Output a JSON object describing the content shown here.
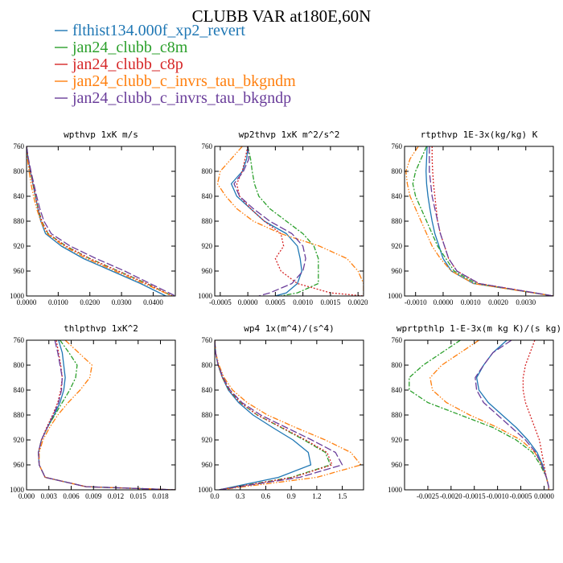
{
  "figure_title": "CLUBB VAR at180E,60N",
  "legend": [
    {
      "name": "flthist134.000f_xp2_revert",
      "color": "#1f77b4"
    },
    {
      "name": "jan24_clubb_c8m",
      "color": "#2ca02c"
    },
    {
      "name": "jan24_clubb_c8p",
      "color": "#d62728"
    },
    {
      "name": "jan24_clubb_c_invrs_tau_bkgndm",
      "color": "#ff7f0e"
    },
    {
      "name": "jan24_clubb_c_invrs_tau_bkgndp",
      "color": "#6a3d9a"
    }
  ],
  "chart_data": [
    {
      "type": "line",
      "title": "wpthvp  1xK m/s",
      "xlim": [
        0,
        0.047
      ],
      "ylim": [
        760,
        1000
      ],
      "y_inverted": true,
      "xticks": [
        0,
        0.01,
        0.02,
        0.03,
        0.04
      ],
      "xtick_labels": [
        "0.0000",
        "0.0100",
        "0.0200",
        "0.0300",
        "0.0400"
      ],
      "yticks": [
        760,
        800,
        840,
        880,
        920,
        960,
        1000
      ],
      "y": [
        760,
        780,
        800,
        820,
        840,
        860,
        880,
        900,
        920,
        940,
        960,
        980,
        1000
      ],
      "series": [
        {
          "name": "flthist134.000f_xp2_revert",
          "x": [
            0,
            0.0005,
            0.0012,
            0.002,
            0.0028,
            0.0036,
            0.0045,
            0.006,
            0.011,
            0.018,
            0.027,
            0.036,
            0.044
          ]
        },
        {
          "name": "jan24_clubb_c8m",
          "x": [
            0,
            0.0005,
            0.0012,
            0.002,
            0.0028,
            0.0037,
            0.0048,
            0.0068,
            0.0125,
            0.02,
            0.029,
            0.038,
            0.046
          ]
        },
        {
          "name": "jan24_clubb_c8p",
          "x": [
            0,
            0.0005,
            0.0012,
            0.002,
            0.0028,
            0.0037,
            0.0048,
            0.0068,
            0.0125,
            0.02,
            0.029,
            0.038,
            0.046
          ]
        },
        {
          "name": "jan24_clubb_c_invrs_tau_bkgndm",
          "x": [
            0,
            0.0003,
            0.0008,
            0.0014,
            0.0022,
            0.0032,
            0.0045,
            0.0065,
            0.0118,
            0.019,
            0.028,
            0.037,
            0.046
          ]
        },
        {
          "name": "jan24_clubb_c_invrs_tau_bkgndp",
          "x": [
            0,
            0.0006,
            0.0014,
            0.0023,
            0.0032,
            0.0042,
            0.0055,
            0.0078,
            0.0138,
            0.022,
            0.031,
            0.039,
            0.047
          ]
        }
      ]
    },
    {
      "type": "line",
      "title": "wp2thvp  1xK m^2/s^2",
      "xlim": [
        -0.0006,
        0.0021
      ],
      "ylim": [
        760,
        1000
      ],
      "y_inverted": true,
      "xticks": [
        -0.0005,
        0,
        0.0005,
        0.001,
        0.0015,
        0.002
      ],
      "xtick_labels": [
        "-0.0005",
        "0.0000",
        "0.0005",
        "0.0010",
        "0.0015",
        "0.0020"
      ],
      "yticks": [
        760,
        800,
        840,
        880,
        920,
        960,
        1000
      ],
      "y": [
        760,
        780,
        800,
        820,
        840,
        860,
        880,
        900,
        920,
        940,
        960,
        980,
        995,
        1000
      ],
      "series": [
        {
          "name": "flthist134.000f_xp2_revert",
          "x": [
            0,
            -2e-05,
            -0.0001,
            -0.0003,
            -0.0002,
            5e-05,
            0.0003,
            0.0007,
            0.0009,
            0.00095,
            0.00098,
            0.0009,
            0.0007,
            0.0005
          ]
        },
        {
          "name": "jan24_clubb_c8m",
          "x": [
            0,
            5e-05,
            8e-05,
            0.00012,
            0.0002,
            0.0004,
            0.0007,
            0.001,
            0.0012,
            0.00128,
            0.00128,
            0.00128,
            0.0009,
            0.0006
          ]
        },
        {
          "name": "jan24_clubb_c8p",
          "x": [
            0,
            -5e-05,
            -0.0001,
            -0.0002,
            -0.00015,
            5e-05,
            0.0003,
            0.0006,
            0.00065,
            0.0005,
            0.0006,
            0.0009,
            0.0015,
            0.0021
          ]
        },
        {
          "name": "jan24_clubb_c_invrs_tau_bkgndm",
          "x": [
            -0.0001,
            -0.0003,
            -0.0005,
            -0.00055,
            -0.0004,
            -0.0002,
            0.0001,
            0.0006,
            0.0013,
            0.0018,
            0.002,
            0.0021,
            0.0021,
            0.0021
          ]
        },
        {
          "name": "jan24_clubb_c_invrs_tau_bkgndp",
          "x": [
            0,
            2e-05,
            -8e-05,
            -0.00025,
            -0.00015,
            0.0001,
            0.0004,
            0.0008,
            0.001,
            0.00105,
            0.001,
            0.0008,
            0.0004,
            0.0002
          ]
        }
      ]
    },
    {
      "type": "line",
      "title": "rtpthvp  1E-3x(kg/kg) K",
      "xlim": [
        -0.0014,
        0.004
      ],
      "ylim": [
        760,
        1000
      ],
      "y_inverted": true,
      "xticks": [
        -0.001,
        0,
        0.001,
        0.002,
        0.003
      ],
      "xtick_labels": [
        "-0.0010",
        "0.0000",
        "0.0010",
        "0.0020",
        "0.0030"
      ],
      "yticks": [
        760,
        800,
        840,
        880,
        920,
        960,
        1000
      ],
      "y": [
        760,
        780,
        800,
        820,
        840,
        860,
        880,
        900,
        920,
        940,
        960,
        980,
        1000
      ],
      "series": [
        {
          "name": "flthist134.000f_xp2_revert",
          "x": [
            -0.00058,
            -0.0006,
            -0.00062,
            -0.0006,
            -0.00055,
            -0.00048,
            -0.0004,
            -0.0003,
            -0.00015,
            0.0,
            0.0003,
            0.0011,
            0.004
          ]
        },
        {
          "name": "jan24_clubb_c8m",
          "x": [
            -0.0006,
            -0.0008,
            -0.001,
            -0.0011,
            -0.001,
            -0.0008,
            -0.0006,
            -0.0004,
            -0.0002,
            0.0001,
            0.0004,
            0.0012,
            0.004
          ]
        },
        {
          "name": "jan24_clubb_c8p",
          "x": [
            -0.0004,
            -0.0004,
            -0.00038,
            -0.00035,
            -0.0003,
            -0.00025,
            -0.0002,
            -0.0001,
            5e-05,
            0.0002,
            0.0005,
            0.0013,
            0.004
          ]
        },
        {
          "name": "jan24_clubb_c_invrs_tau_bkgndm",
          "x": [
            -0.0009,
            -0.0012,
            -0.00135,
            -0.0013,
            -0.0012,
            -0.001,
            -0.0008,
            -0.0006,
            -0.0004,
            -0.0001,
            0.0003,
            0.0011,
            0.004
          ]
        },
        {
          "name": "jan24_clubb_c_invrs_tau_bkgndp",
          "x": [
            -0.0005,
            -0.0005,
            -0.0005,
            -0.00045,
            -0.0004,
            -0.0003,
            -0.0002,
            -0.0001,
            5e-05,
            0.0002,
            0.0005,
            0.0013,
            0.004
          ]
        }
      ]
    },
    {
      "type": "line",
      "title": "thlpthvp  1xK^2",
      "xlim": [
        0,
        0.02
      ],
      "ylim": [
        760,
        1000
      ],
      "y_inverted": true,
      "xticks": [
        0,
        0.003,
        0.006,
        0.009,
        0.012,
        0.015,
        0.018
      ],
      "xtick_labels": [
        "0.000",
        "0.003",
        "0.006",
        "0.009",
        "0.012",
        "0.015",
        "0.018"
      ],
      "yticks": [
        760,
        800,
        840,
        880,
        920,
        960,
        1000
      ],
      "y": [
        760,
        780,
        800,
        820,
        840,
        860,
        880,
        900,
        920,
        940,
        960,
        980,
        995,
        1000
      ],
      "series": [
        {
          "name": "flthist134.000f_xp2_revert",
          "x": [
            0.0043,
            0.0048,
            0.005,
            0.0052,
            0.005,
            0.0045,
            0.0037,
            0.0028,
            0.002,
            0.0016,
            0.0017,
            0.0025,
            0.008,
            0.02
          ]
        },
        {
          "name": "jan24_clubb_c8m",
          "x": [
            0.0045,
            0.0057,
            0.0068,
            0.0066,
            0.0058,
            0.0048,
            0.0038,
            0.0028,
            0.002,
            0.0016,
            0.0017,
            0.0025,
            0.008,
            0.02
          ]
        },
        {
          "name": "jan24_clubb_c8p",
          "x": [
            0.004,
            0.0043,
            0.0046,
            0.0048,
            0.0046,
            0.0042,
            0.0035,
            0.0027,
            0.002,
            0.0016,
            0.0017,
            0.0025,
            0.008,
            0.02
          ]
        },
        {
          "name": "jan24_clubb_c_invrs_tau_bkgndm",
          "x": [
            0.0052,
            0.007,
            0.0088,
            0.0085,
            0.0072,
            0.0056,
            0.0042,
            0.0031,
            0.0022,
            0.0017,
            0.0017,
            0.0025,
            0.008,
            0.02
          ]
        },
        {
          "name": "jan24_clubb_c_invrs_tau_bkgndp",
          "x": [
            0.0038,
            0.0042,
            0.0045,
            0.0048,
            0.0047,
            0.0043,
            0.0036,
            0.0028,
            0.002,
            0.0016,
            0.0017,
            0.0025,
            0.008,
            0.02
          ]
        }
      ]
    },
    {
      "type": "line",
      "title": "wp4  1x(m^4)/(s^4)",
      "xlim": [
        0,
        1.75
      ],
      "ylim": [
        760,
        1000
      ],
      "y_inverted": true,
      "xticks": [
        0,
        0.3,
        0.6,
        0.9,
        1.2,
        1.5
      ],
      "xtick_labels": [
        "0.0",
        "0.3",
        "0.6",
        "0.9",
        "1.2",
        "1.5"
      ],
      "yticks": [
        760,
        800,
        840,
        880,
        920,
        960,
        1000
      ],
      "y": [
        760,
        780,
        800,
        820,
        840,
        860,
        880,
        900,
        920,
        940,
        960,
        980,
        1000
      ],
      "series": [
        {
          "name": "flthist134.000f_xp2_revert",
          "x": [
            0,
            0.01,
            0.04,
            0.09,
            0.16,
            0.28,
            0.45,
            0.68,
            0.92,
            1.1,
            1.13,
            0.75,
            0.05
          ]
        },
        {
          "name": "jan24_clubb_c8m",
          "x": [
            0,
            0.01,
            0.04,
            0.09,
            0.17,
            0.3,
            0.5,
            0.78,
            1.05,
            1.3,
            1.36,
            0.9,
            0.05
          ]
        },
        {
          "name": "jan24_clubb_c8p",
          "x": [
            0,
            0.01,
            0.04,
            0.09,
            0.17,
            0.3,
            0.5,
            0.79,
            1.07,
            1.32,
            1.38,
            0.92,
            0.05
          ]
        },
        {
          "name": "jan24_clubb_c_invrs_tau_bkgndm",
          "x": [
            0,
            0.01,
            0.05,
            0.11,
            0.21,
            0.38,
            0.62,
            0.95,
            1.3,
            1.6,
            1.72,
            1.2,
            0.06
          ]
        },
        {
          "name": "jan24_clubb_c_invrs_tau_bkgndp",
          "x": [
            0,
            0.01,
            0.04,
            0.1,
            0.18,
            0.32,
            0.54,
            0.84,
            1.14,
            1.42,
            1.5,
            1.0,
            0.05
          ]
        }
      ]
    },
    {
      "type": "line",
      "title": "wprtpthlp  1-E-3x(m kg K)/(s kg)",
      "xlim": [
        -0.003,
        0.0002
      ],
      "ylim": [
        760,
        1000
      ],
      "y_inverted": true,
      "xticks": [
        -0.0025,
        -0.002,
        -0.0015,
        -0.001,
        -0.0005,
        0
      ],
      "xtick_labels": [
        "-0.0025",
        "-0.0020",
        "-0.0015",
        "-0.0010",
        "-0.0005",
        "0.0000"
      ],
      "yticks": [
        760,
        800,
        840,
        880,
        920,
        960,
        1000
      ],
      "y": [
        760,
        780,
        800,
        820,
        840,
        860,
        880,
        900,
        920,
        940,
        960,
        980,
        995,
        1000
      ],
      "series": [
        {
          "name": "flthist134.000f_xp2_revert",
          "x": [
            -0.0008,
            -0.0011,
            -0.0013,
            -0.00145,
            -0.0014,
            -0.0012,
            -0.0009,
            -0.0006,
            -0.00035,
            -0.00015,
            -3e-05,
            5e-05,
            0.0001,
            0.0001
          ]
        },
        {
          "name": "jan24_clubb_c8m",
          "x": [
            -0.0018,
            -0.0022,
            -0.0026,
            -0.0029,
            -0.0029,
            -0.0025,
            -0.0018,
            -0.0011,
            -0.0006,
            -0.00025,
            -8e-05,
            5e-05,
            0.0001,
            0.0001
          ]
        },
        {
          "name": "jan24_clubb_c8p",
          "x": [
            -0.0002,
            -0.0003,
            -0.0004,
            -0.00045,
            -0.00045,
            -0.0004,
            -0.0003,
            -0.0002,
            -0.0001,
            -5e-05,
            0,
            5e-05,
            0.0001,
            0.0001
          ]
        },
        {
          "name": "jan24_clubb_c_invrs_tau_bkgndm",
          "x": [
            -0.0014,
            -0.0018,
            -0.0022,
            -0.00245,
            -0.0024,
            -0.0021,
            -0.0016,
            -0.001,
            -0.0005,
            -0.0002,
            -5e-05,
            5e-05,
            0.0001,
            0.0001
          ]
        },
        {
          "name": "jan24_clubb_c_invrs_tau_bkgndp",
          "x": [
            -0.0007,
            -0.0011,
            -0.0013,
            -0.00148,
            -0.00145,
            -0.0013,
            -0.001,
            -0.0007,
            -0.0004,
            -0.00018,
            -5e-05,
            5e-05,
            0.0001,
            0.0001
          ]
        }
      ]
    }
  ]
}
